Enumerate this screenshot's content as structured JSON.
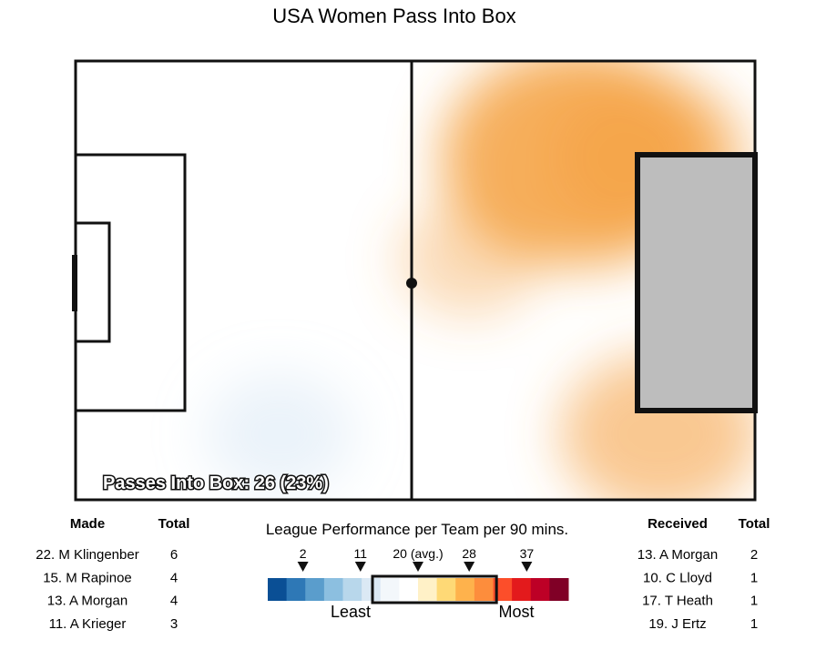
{
  "title": "USA Women Pass Into Box",
  "summary_label": "Passes Into Box: 26 (23%)",
  "chart_data": {
    "type": "heatmap",
    "title": "USA Women Pass Into Box",
    "passes_into_box": 26,
    "passes_into_box_pct": 23,
    "hotspots": [
      {
        "x": 0.74,
        "y": 0.22,
        "intensity": 1.0
      },
      {
        "x": 0.84,
        "y": 0.22,
        "intensity": 0.55
      },
      {
        "x": 0.86,
        "y": 0.85,
        "intensity": 0.55
      },
      {
        "x": 0.58,
        "y": 0.45,
        "intensity": 0.2
      },
      {
        "x": 0.3,
        "y": 0.85,
        "intensity": -0.25
      }
    ]
  },
  "made_table": {
    "headers": {
      "name": "Made",
      "total": "Total"
    },
    "rows": [
      {
        "name": "22. M Klingenber",
        "total": "6"
      },
      {
        "name": "15. M Rapinoe",
        "total": "4"
      },
      {
        "name": "13. A Morgan",
        "total": "4"
      },
      {
        "name": "11. A Krieger",
        "total": "3"
      }
    ]
  },
  "received_table": {
    "headers": {
      "name": "Received",
      "total": "Total"
    },
    "rows": [
      {
        "name": "13. A Morgan",
        "total": "2"
      },
      {
        "name": "10. C Lloyd",
        "total": "1"
      },
      {
        "name": "17. T Heath",
        "total": "1"
      },
      {
        "name": "19. J Ertz",
        "total": "1"
      }
    ]
  },
  "legend": {
    "title": "League Performance per Team per 90 mins.",
    "least": "Least",
    "most": "Most",
    "colors": [
      "#0a4f95",
      "#2e78b6",
      "#5a9dcc",
      "#8cbfe0",
      "#b8d7eb",
      "#dbe9f4",
      "#f3f7fb",
      "#ffffff",
      "#fff1c7",
      "#fed976",
      "#feb24c",
      "#fd8d3c",
      "#fc4e2a",
      "#e31a1c",
      "#bd0026",
      "#800026"
    ],
    "markers": [
      {
        "label": "2",
        "value": 2
      },
      {
        "label": "11",
        "value": 11
      },
      {
        "label": "20 (avg.)",
        "value": 20
      },
      {
        "label": "28",
        "value": 28
      },
      {
        "label": "37",
        "value": 37
      }
    ],
    "highlight_range": [
      20,
      28
    ]
  },
  "colors": {
    "pitch_line": "#111111",
    "goal_box_fill": "#bdbdbd",
    "heat_warm": "#f4a13f",
    "heat_cool": "#c7ddf0"
  }
}
